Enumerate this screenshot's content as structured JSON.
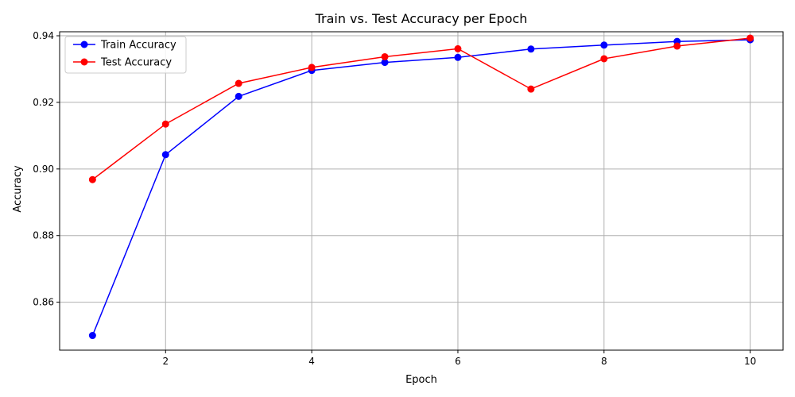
{
  "chart_data": {
    "type": "line",
    "title": "Train vs. Test Accuracy per Epoch",
    "xlabel": "Epoch",
    "ylabel": "Accuracy",
    "x": [
      1,
      2,
      3,
      4,
      5,
      6,
      7,
      8,
      9,
      10
    ],
    "xlim": [
      0.55,
      10.45
    ],
    "ylim": [
      0.8456,
      0.9412
    ],
    "xticks": [
      2,
      4,
      6,
      8,
      10
    ],
    "yticks": [
      0.86,
      0.88,
      0.9,
      0.92,
      0.94
    ],
    "xtick_labels": [
      "2",
      "4",
      "6",
      "8",
      "10"
    ],
    "ytick_labels": [
      "0.86",
      "0.88",
      "0.90",
      "0.92",
      "0.94"
    ],
    "grid": true,
    "legend_position": "upper-left",
    "series": [
      {
        "name": "Train Accuracy",
        "color": "#0000ff",
        "marker": "circle",
        "values": [
          0.85,
          0.9043,
          0.9218,
          0.9296,
          0.932,
          0.9335,
          0.936,
          0.9372,
          0.9383,
          0.9388
        ]
      },
      {
        "name": "Test Accuracy",
        "color": "#ff0000",
        "marker": "circle",
        "values": [
          0.8968,
          0.9135,
          0.9257,
          0.9305,
          0.9337,
          0.9361,
          0.924,
          0.9331,
          0.9369,
          0.9393
        ]
      }
    ]
  }
}
